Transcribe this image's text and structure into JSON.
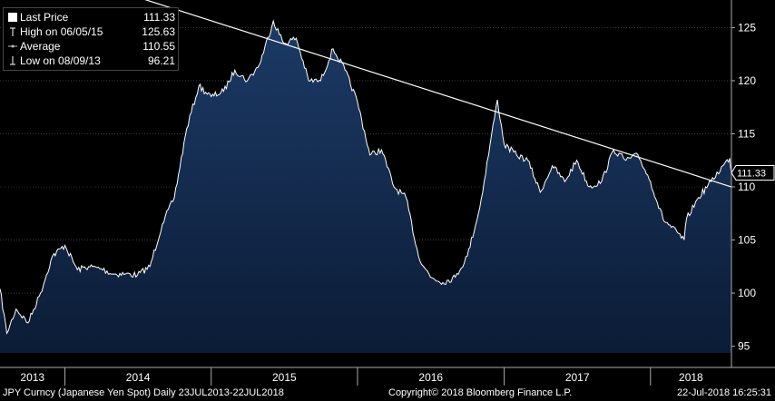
{
  "legend": {
    "last_price": {
      "label": "Last Price",
      "value": "111.33"
    },
    "high": {
      "label": "High on 06/05/15",
      "value": "125.63"
    },
    "average": {
      "label": "Average",
      "value": "110.55"
    },
    "low": {
      "label": "Low on 08/09/13",
      "value": "96.21"
    }
  },
  "last_value_badge": "111.33",
  "footer": {
    "left": "JPY Curncy (Japanese Yen Spot)  Daily 23JUL2013-22JUL2018",
    "center": "Copyright© 2018 Bloomberg Finance L.P.",
    "right": "22-Jul-2018 16:25:31"
  },
  "colors": {
    "background": "#000000",
    "area_fill_top": "#1c3a66",
    "area_fill_bottom": "#0b1c36",
    "line": "#ffffff",
    "grid": "#5a5a5a"
  },
  "chart_data": {
    "type": "area",
    "series": [
      {
        "x": [
          "2013-07-23",
          "2013-08-09",
          "2013-09-01",
          "2013-10-01",
          "2013-11-01",
          "2013-12-01",
          "2014-01-01",
          "2014-02-01",
          "2014-03-01",
          "2014-04-01",
          "2014-05-01",
          "2014-06-01",
          "2014-07-01",
          "2014-08-01",
          "2014-09-01",
          "2014-10-01",
          "2014-11-01",
          "2014-12-01",
          "2015-01-01",
          "2015-02-01",
          "2015-03-01",
          "2015-04-01",
          "2015-05-01",
          "2015-06-05",
          "2015-07-01",
          "2015-08-01",
          "2015-09-01",
          "2015-10-01",
          "2015-11-01",
          "2015-12-01",
          "2016-01-01",
          "2016-02-01",
          "2016-03-01",
          "2016-04-01",
          "2016-05-01",
          "2016-06-01",
          "2016-07-01",
          "2016-08-01",
          "2016-09-01",
          "2016-10-01",
          "2016-11-01",
          "2016-12-15",
          "2017-01-01",
          "2017-02-01",
          "2017-03-01",
          "2017-04-01",
          "2017-05-01",
          "2017-06-01",
          "2017-07-01",
          "2017-08-01",
          "2017-09-01",
          "2017-10-01",
          "2017-11-01",
          "2017-12-01",
          "2018-01-01",
          "2018-02-01",
          "2018-03-26",
          "2018-04-01",
          "2018-05-01",
          "2018-06-01",
          "2018-07-01",
          "2018-07-18",
          "2018-07-22"
        ],
        "y": [
          100.4,
          96.21,
          98.5,
          97.2,
          100.0,
          103.5,
          104.5,
          102.2,
          102.5,
          102.3,
          101.8,
          101.8,
          101.7,
          102.5,
          106.5,
          109.0,
          115.5,
          119.5,
          118.5,
          119.0,
          121.0,
          120.0,
          121.5,
          125.63,
          123.5,
          124.0,
          120.0,
          120.0,
          123.0,
          121.0,
          118.0,
          113.0,
          113.5,
          110.0,
          109.0,
          103.5,
          101.5,
          101.0,
          101.5,
          103.5,
          108.0,
          118.2,
          114.0,
          113.0,
          112.5,
          109.5,
          112.0,
          110.5,
          112.5,
          110.0,
          110.5,
          113.5,
          112.5,
          113.0,
          110.5,
          107.0,
          105.0,
          107.0,
          109.0,
          110.5,
          112.0,
          112.7,
          111.33
        ]
      }
    ],
    "trendline": {
      "x": [
        "2013-07-23",
        "2018-07-22"
      ],
      "y": [
        132.0,
        110.0
      ]
    },
    "x_ticks": [
      "2013",
      "2014",
      "2015",
      "2016",
      "2017",
      "2018"
    ],
    "y_ticks": [
      95,
      100,
      105,
      110,
      115,
      120,
      125
    ],
    "xlim": [
      "2013-07-23",
      "2018-07-22"
    ],
    "ylim": [
      93.0,
      127.6
    ],
    "grid": true,
    "legend_position": "top-left"
  }
}
